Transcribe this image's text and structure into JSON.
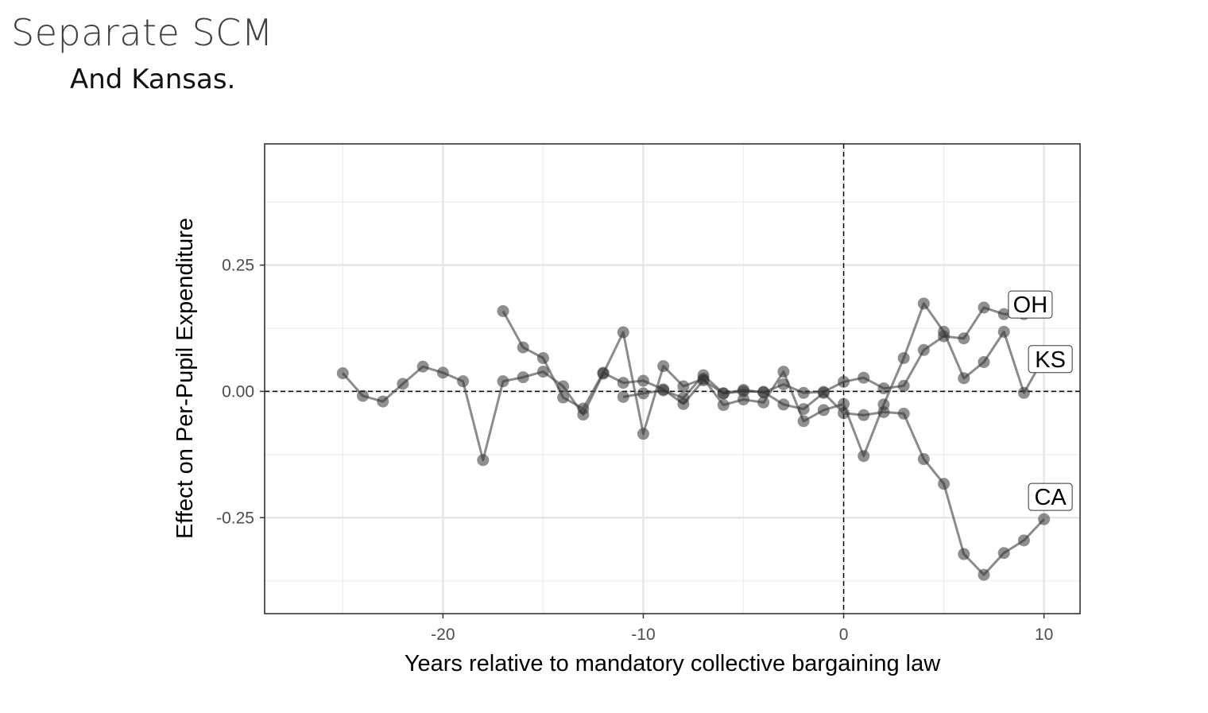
{
  "slide": {
    "title": "Separate SCM",
    "subtitle": "And Kansas."
  },
  "chart_data": {
    "type": "line",
    "xlabel": "Years relative to mandatory collective bargaining law",
    "ylabel": "Effect on Per-Pupil Expenditure",
    "xlim": [
      -28.9,
      11.8
    ],
    "ylim": [
      -0.44,
      0.49
    ],
    "x_ticks": [
      -20,
      -10,
      0,
      10
    ],
    "x_tick_labels": [
      "-20",
      "-10",
      "0",
      "10"
    ],
    "y_ticks": [
      -0.25,
      0,
      0.25
    ],
    "y_tick_labels": [
      "-0.25",
      "0.00",
      "0.25"
    ],
    "reference_lines": {
      "h": 0,
      "v": 0
    },
    "grid": true,
    "line_color": "#4d4d4d",
    "point_color": "#333333",
    "series": [
      {
        "name": "OH",
        "x": [
          -17,
          -16,
          -15,
          -14,
          -13,
          -12,
          -11,
          -10,
          -9,
          -8,
          -7,
          -6,
          -5,
          -4,
          -3,
          -2,
          -1,
          0,
          1,
          2,
          3,
          4,
          5,
          6,
          7,
          8,
          9
        ],
        "y": [
          0.159,
          0.087,
          0.066,
          -0.012,
          -0.034,
          0.037,
          0.017,
          0.021,
          0.004,
          -0.025,
          0.022,
          -0.004,
          0.003,
          -0.002,
          0.014,
          -0.003,
          -0.001,
          0.019,
          0.027,
          0.006,
          0.011,
          0.082,
          0.109,
          0.105,
          0.166,
          0.153,
          0.153
        ]
      },
      {
        "name": "KS",
        "x": [
          -25,
          -24,
          -23,
          -22,
          -21,
          -20,
          -19,
          -18,
          -17,
          -16,
          -15,
          -14,
          -13,
          -12,
          -11,
          -10,
          -9,
          -8,
          -7,
          -6,
          -5,
          -4,
          -3,
          -2,
          -1,
          0,
          1,
          2,
          3,
          4,
          5,
          6,
          7,
          8,
          9,
          10
        ],
        "y": [
          0.036,
          -0.009,
          -0.02,
          0.015,
          0.049,
          0.037,
          0.02,
          -0.136,
          0.02,
          0.028,
          0.039,
          0.01,
          -0.046,
          0.035,
          0.117,
          -0.084,
          0.05,
          0.01,
          0.025,
          -0.027,
          -0.016,
          -0.022,
          0.039,
          -0.059,
          -0.037,
          -0.025,
          -0.128,
          -0.026,
          0.066,
          0.174,
          0.118,
          0.026,
          0.058,
          0.118,
          -0.003,
          0.067
        ]
      },
      {
        "name": "CA",
        "x": [
          -11,
          -10,
          -9,
          -8,
          -7,
          -6,
          -5,
          -4,
          -3,
          -2,
          -1,
          0,
          1,
          2,
          3,
          4,
          5,
          6,
          7,
          8,
          9,
          10
        ],
        "y": [
          -0.011,
          -0.004,
          0.002,
          -0.013,
          0.032,
          -0.004,
          0.0,
          -0.001,
          -0.026,
          -0.035,
          -0.003,
          -0.043,
          -0.047,
          -0.041,
          -0.044,
          -0.134,
          -0.183,
          -0.322,
          -0.363,
          -0.32,
          -0.295,
          -0.253
        ]
      }
    ]
  }
}
